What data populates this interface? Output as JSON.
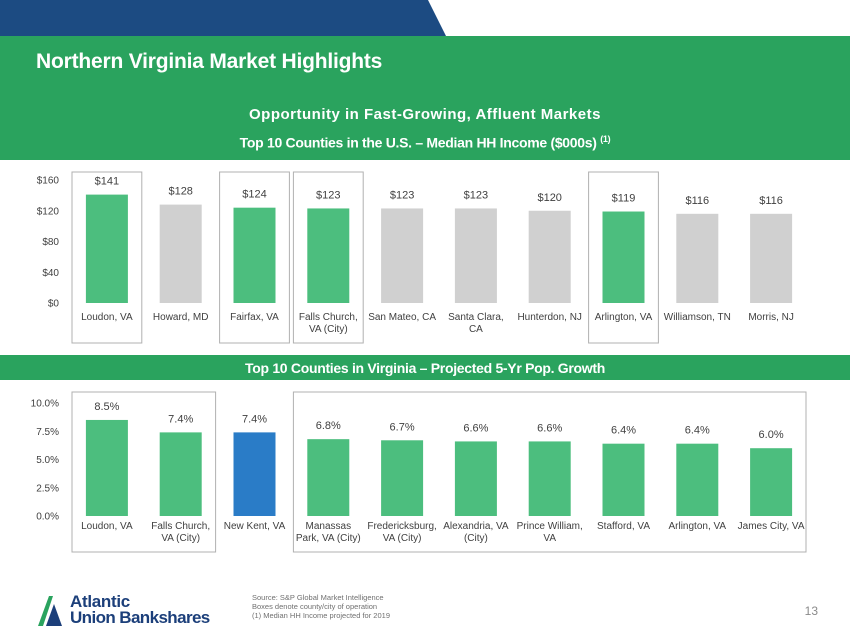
{
  "slide": {
    "title": "Northern Virginia Market Highlights",
    "subtitle": "Opportunity in Fast-Growing, Affluent Markets",
    "page_number": "13"
  },
  "colors": {
    "green": "#2aa35e",
    "bar_green": "#4cbe7e",
    "bar_gray": "#d0d0d0",
    "bar_blue": "#2a7cc7",
    "navy": "#1c4b82",
    "logo_navy": "#1c3f7a"
  },
  "footer": {
    "logo_line1": "Atlantic",
    "logo_line2": "Union Bankshares",
    "source_lines": [
      "Source: S&P Global Market Intelligence",
      "Boxes denote county/city of operation",
      "(1) Median HH Income projected for 2019"
    ]
  },
  "chart_data": [
    {
      "type": "bar",
      "title": "Top 10 Counties in the U.S. – Median HH Income ($000s)",
      "title_note": "(1)",
      "categories": [
        "Loudon, VA",
        "Howard, MD",
        "Fairfax, VA",
        "Falls Church, VA (City)",
        "San Mateo, CA",
        "Santa Clara, CA",
        "Hunterdon, NJ",
        "Arlington, VA",
        "Williamson, TN",
        "Morris, NJ"
      ],
      "category_lines": [
        [
          "Loudon, VA"
        ],
        [
          "Howard, MD"
        ],
        [
          "Fairfax, VA"
        ],
        [
          "Falls Church,",
          "VA (City)"
        ],
        [
          "San Mateo, CA"
        ],
        [
          "Santa Clara,",
          "CA"
        ],
        [
          "Hunterdon, NJ"
        ],
        [
          "Arlington, VA"
        ],
        [
          "Williamson, TN"
        ],
        [
          "Morris, NJ"
        ]
      ],
      "values": [
        141,
        128,
        124,
        123,
        123,
        123,
        120,
        119,
        116,
        116
      ],
      "value_labels": [
        "$141",
        "$128",
        "$124",
        "$123",
        "$123",
        "$123",
        "$120",
        "$119",
        "$116",
        "$116"
      ],
      "bar_colors": [
        "green",
        "gray",
        "green",
        "green",
        "gray",
        "gray",
        "gray",
        "green",
        "gray",
        "gray"
      ],
      "boxed": [
        0,
        2,
        3,
        7
      ],
      "yticks": [
        0,
        40,
        80,
        120,
        160
      ],
      "ytick_labels": [
        "$0",
        "$40",
        "$80",
        "$120",
        "$160"
      ],
      "ylim": [
        0,
        160
      ],
      "grid": false
    },
    {
      "type": "bar",
      "title": "Top 10 Counties in Virginia – Projected 5-Yr Pop. Growth",
      "categories": [
        "Loudon, VA",
        "Falls Church, VA (City)",
        "New Kent, VA",
        "Manassas Park, VA (City)",
        "Fredericksburg, VA (City)",
        "Alexandria, VA (City)",
        "Prince William, VA",
        "Stafford, VA",
        "Arlington, VA",
        "James City, VA"
      ],
      "category_lines": [
        [
          "Loudon, VA"
        ],
        [
          "Falls Church,",
          "VA (City)"
        ],
        [
          "New Kent, VA"
        ],
        [
          "Manassas",
          "Park, VA (City)"
        ],
        [
          "Fredericksburg,",
          "VA (City)"
        ],
        [
          "Alexandria, VA",
          "(City)"
        ],
        [
          "Prince William,",
          "VA"
        ],
        [
          "Stafford, VA"
        ],
        [
          "Arlington, VA"
        ],
        [
          "James City, VA"
        ]
      ],
      "values": [
        8.5,
        7.4,
        7.4,
        6.8,
        6.7,
        6.6,
        6.6,
        6.4,
        6.4,
        6.0
      ],
      "value_labels": [
        "8.5%",
        "7.4%",
        "7.4%",
        "6.8%",
        "6.7%",
        "6.6%",
        "6.6%",
        "6.4%",
        "6.4%",
        "6.0%"
      ],
      "bar_colors": [
        "green",
        "green",
        "blue",
        "green",
        "green",
        "green",
        "green",
        "green",
        "green",
        "green"
      ],
      "boxed_ranges": [
        [
          0,
          1
        ],
        [
          3,
          9
        ]
      ],
      "yticks": [
        0,
        2.5,
        5,
        7.5,
        10
      ],
      "ytick_labels": [
        "0.0%",
        "2.5%",
        "5.0%",
        "7.5%",
        "10.0%"
      ],
      "ylim": [
        0,
        10
      ],
      "grid": false
    }
  ]
}
